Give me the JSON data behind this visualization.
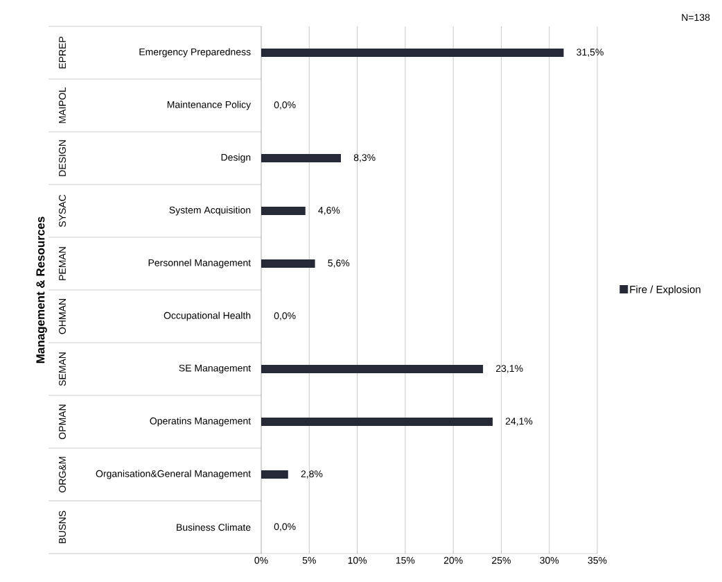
{
  "chart_data": {
    "type": "bar",
    "orientation": "horizontal",
    "ylabel": "Management & Resources",
    "categories": [
      "Emergency Preparedness",
      "Maintenance Policy",
      "Design",
      "System Acquisition",
      "Personnel Management",
      "Occupational Health",
      "SE Management",
      "Operatins Management",
      "Organisation&General Management",
      "Business Climate"
    ],
    "series": [
      {
        "name": "Fire / Explosion",
        "color": "#252a36",
        "values": [
          31.5,
          0,
          8.3,
          4.6,
          5.6,
          0,
          23.1,
          24.1,
          2.8,
          0
        ],
        "value_labels": [
          "31,5%",
          "0,0%",
          "8,3%",
          "4,6%",
          "5,6%",
          "0,0%",
          "23,1%",
          "24,1%",
          "2,8%",
          "0,0%"
        ]
      }
    ],
    "xlim": [
      0,
      35
    ],
    "xticks": [
      {
        "value": 0,
        "label": "0%"
      },
      {
        "value": 5,
        "label": "5%"
      },
      {
        "value": 10,
        "label": "10%"
      },
      {
        "value": 15,
        "label": "15%"
      },
      {
        "value": 20,
        "label": "20%"
      },
      {
        "value": 25,
        "label": "25%"
      },
      {
        "value": 30,
        "label": "30%"
      },
      {
        "value": 35,
        "label": "35%"
      }
    ],
    "grid": "x",
    "legend": "right",
    "annotations": [
      "N=138",
      "EPREP",
      "MAIPOL",
      "DESIGN",
      "SYSAC",
      "PEMAN",
      "OHMAN",
      "SEMAN",
      "OPMAN",
      "ORG&M",
      "BUSNS"
    ]
  }
}
